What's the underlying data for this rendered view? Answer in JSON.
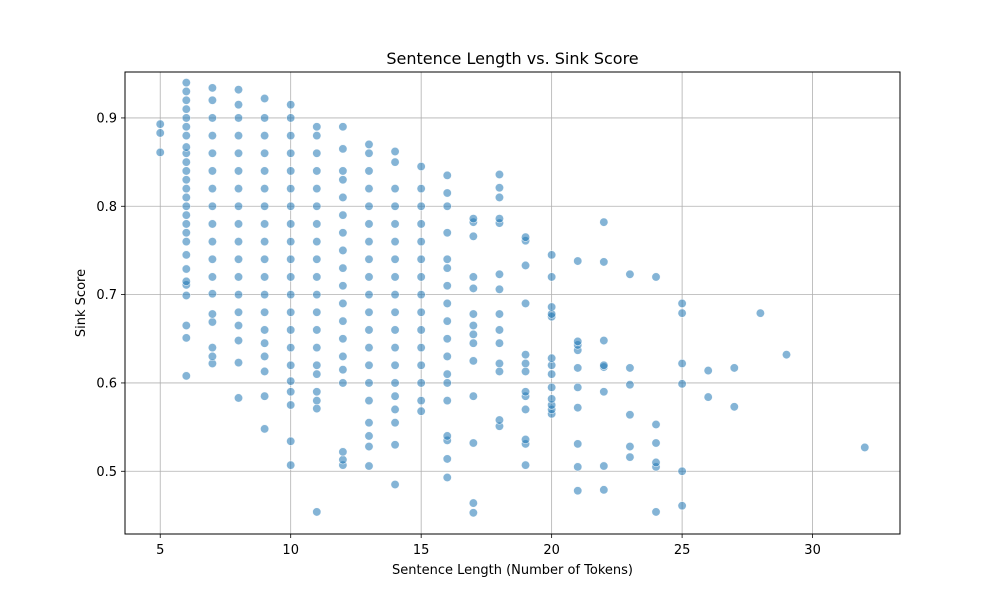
{
  "chart_data": {
    "type": "scatter",
    "title": "Sentence Length vs. Sink Score",
    "xlabel": "Sentence Length (Number of Tokens)",
    "ylabel": "Sink Score",
    "xlim": [
      3.65,
      33.35
    ],
    "ylim": [
      0.429,
      0.952
    ],
    "xticks": [
      5,
      10,
      15,
      20,
      25,
      30
    ],
    "yticks": [
      0.5,
      0.6,
      0.7,
      0.8,
      0.9
    ],
    "xtick_labels": [
      "5",
      "10",
      "15",
      "20",
      "25",
      "30"
    ],
    "ytick_labels": [
      "0.5",
      "0.6",
      "0.7",
      "0.8",
      "0.9"
    ],
    "grid": true,
    "marker_color": "#1f77b4",
    "marker_alpha": 0.55,
    "points_summary": [
      {
        "x": 5,
        "y": [
          0.861,
          0.883,
          0.893
        ]
      },
      {
        "x": 6,
        "y": [
          0.608,
          0.651,
          0.665,
          0.699,
          0.711,
          0.715,
          0.729,
          0.745,
          0.76,
          0.77,
          0.78,
          0.79,
          0.8,
          0.81,
          0.82,
          0.83,
          0.84,
          0.85,
          0.86,
          0.867,
          0.88,
          0.89,
          0.9,
          0.91,
          0.92,
          0.93,
          0.94
        ]
      },
      {
        "x": 7,
        "y": [
          0.622,
          0.63,
          0.64,
          0.669,
          0.678,
          0.701,
          0.72,
          0.74,
          0.76,
          0.78,
          0.8,
          0.82,
          0.84,
          0.86,
          0.88,
          0.9,
          0.92,
          0.934
        ]
      },
      {
        "x": 8,
        "y": [
          0.583,
          0.623,
          0.648,
          0.665,
          0.68,
          0.7,
          0.72,
          0.74,
          0.76,
          0.78,
          0.8,
          0.82,
          0.84,
          0.86,
          0.88,
          0.9,
          0.915,
          0.932
        ]
      },
      {
        "x": 9,
        "y": [
          0.548,
          0.585,
          0.613,
          0.63,
          0.645,
          0.66,
          0.68,
          0.7,
          0.72,
          0.74,
          0.76,
          0.78,
          0.8,
          0.82,
          0.84,
          0.86,
          0.88,
          0.9,
          0.922
        ]
      },
      {
        "x": 10,
        "y": [
          0.507,
          0.534,
          0.575,
          0.59,
          0.602,
          0.62,
          0.64,
          0.66,
          0.68,
          0.7,
          0.72,
          0.74,
          0.76,
          0.78,
          0.8,
          0.82,
          0.84,
          0.86,
          0.88,
          0.9,
          0.915
        ]
      },
      {
        "x": 11,
        "y": [
          0.454,
          0.571,
          0.58,
          0.59,
          0.61,
          0.62,
          0.64,
          0.66,
          0.68,
          0.7,
          0.72,
          0.74,
          0.76,
          0.78,
          0.8,
          0.82,
          0.84,
          0.86,
          0.88,
          0.89
        ]
      },
      {
        "x": 12,
        "y": [
          0.507,
          0.513,
          0.522,
          0.6,
          0.615,
          0.63,
          0.65,
          0.67,
          0.69,
          0.71,
          0.73,
          0.75,
          0.77,
          0.79,
          0.81,
          0.83,
          0.84,
          0.865,
          0.89
        ]
      },
      {
        "x": 13,
        "y": [
          0.506,
          0.528,
          0.54,
          0.555,
          0.58,
          0.6,
          0.62,
          0.64,
          0.66,
          0.68,
          0.7,
          0.72,
          0.74,
          0.76,
          0.78,
          0.8,
          0.82,
          0.84,
          0.86,
          0.87
        ]
      },
      {
        "x": 14,
        "y": [
          0.485,
          0.53,
          0.555,
          0.57,
          0.585,
          0.6,
          0.62,
          0.64,
          0.66,
          0.68,
          0.7,
          0.72,
          0.74,
          0.76,
          0.78,
          0.8,
          0.82,
          0.85,
          0.862
        ]
      },
      {
        "x": 15,
        "y": [
          0.568,
          0.58,
          0.6,
          0.62,
          0.64,
          0.66,
          0.68,
          0.7,
          0.72,
          0.74,
          0.76,
          0.78,
          0.8,
          0.82,
          0.845
        ]
      },
      {
        "x": 16,
        "y": [
          0.493,
          0.514,
          0.535,
          0.54,
          0.58,
          0.6,
          0.61,
          0.63,
          0.65,
          0.67,
          0.69,
          0.71,
          0.73,
          0.74,
          0.77,
          0.8,
          0.815,
          0.835
        ]
      },
      {
        "x": 17,
        "y": [
          0.453,
          0.464,
          0.532,
          0.585,
          0.625,
          0.645,
          0.655,
          0.665,
          0.678,
          0.707,
          0.72,
          0.766,
          0.782,
          0.786
        ]
      },
      {
        "x": 18,
        "y": [
          0.551,
          0.558,
          0.613,
          0.622,
          0.645,
          0.66,
          0.678,
          0.706,
          0.723,
          0.781,
          0.786,
          0.81,
          0.821,
          0.836
        ]
      },
      {
        "x": 19,
        "y": [
          0.507,
          0.531,
          0.536,
          0.57,
          0.585,
          0.59,
          0.613,
          0.622,
          0.632,
          0.69,
          0.733,
          0.761,
          0.765
        ]
      },
      {
        "x": 20,
        "y": [
          0.565,
          0.57,
          0.575,
          0.582,
          0.595,
          0.61,
          0.62,
          0.628,
          0.675,
          0.678,
          0.686,
          0.72,
          0.745
        ]
      },
      {
        "x": 21,
        "y": [
          0.478,
          0.505,
          0.531,
          0.572,
          0.595,
          0.617,
          0.637,
          0.643,
          0.647,
          0.738
        ]
      },
      {
        "x": 22,
        "y": [
          0.479,
          0.506,
          0.59,
          0.618,
          0.62,
          0.648,
          0.737,
          0.782
        ]
      },
      {
        "x": 23,
        "y": [
          0.516,
          0.528,
          0.564,
          0.598,
          0.617,
          0.723
        ]
      },
      {
        "x": 24,
        "y": [
          0.454,
          0.505,
          0.51,
          0.532,
          0.553,
          0.72
        ]
      },
      {
        "x": 25,
        "y": [
          0.461,
          0.5,
          0.599,
          0.622,
          0.679,
          0.69
        ]
      },
      {
        "x": 26,
        "y": [
          0.584,
          0.614
        ]
      },
      {
        "x": 27,
        "y": [
          0.573,
          0.617
        ]
      },
      {
        "x": 28,
        "y": [
          0.679
        ]
      },
      {
        "x": 29,
        "y": [
          0.632
        ]
      },
      {
        "x": 32,
        "y": [
          0.527
        ]
      }
    ]
  }
}
